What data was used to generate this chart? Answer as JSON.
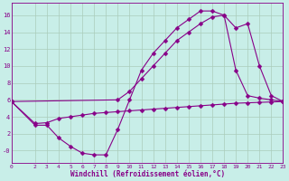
{
  "xlabel": "Windchill (Refroidissement éolien,°C)",
  "bg_color": "#c8eee8",
  "line_color": "#880088",
  "xlim": [
    0,
    23
  ],
  "ylim": [
    -1.5,
    17.5
  ],
  "yticks": [
    0,
    2,
    4,
    6,
    8,
    10,
    12,
    14,
    16
  ],
  "ytick_labels": [
    "-0",
    "2",
    "4",
    "6",
    "8",
    "10",
    "12",
    "14",
    "16"
  ],
  "xticks": [
    0,
    2,
    3,
    4,
    5,
    6,
    7,
    8,
    9,
    10,
    11,
    12,
    13,
    14,
    15,
    16,
    17,
    18,
    19,
    20,
    21,
    22,
    23
  ],
  "line1_x": [
    0,
    2,
    3,
    4,
    5,
    6,
    7,
    8,
    9,
    10,
    11,
    12,
    13,
    14,
    15,
    16,
    17,
    18,
    19,
    20,
    21,
    22,
    23
  ],
  "line1_y": [
    5.8,
    3.0,
    3.0,
    1.5,
    0.5,
    -0.3,
    -0.5,
    -0.5,
    2.5,
    6.0,
    9.5,
    11.5,
    13.0,
    14.5,
    15.5,
    16.5,
    16.5,
    16.0,
    9.5,
    6.5,
    6.2,
    6.0,
    5.8
  ],
  "line2_x": [
    0,
    9,
    10,
    11,
    12,
    13,
    14,
    15,
    16,
    17,
    18,
    19,
    20,
    21,
    22,
    23
  ],
  "line2_y": [
    5.8,
    6.0,
    7.0,
    8.5,
    10.0,
    11.5,
    13.0,
    14.0,
    15.0,
    15.8,
    16.0,
    14.5,
    15.0,
    10.0,
    6.5,
    5.8
  ],
  "line3_x": [
    0,
    2,
    3,
    4,
    5,
    6,
    7,
    8,
    9,
    10,
    11,
    12,
    13,
    14,
    15,
    16,
    17,
    18,
    19,
    20,
    21,
    22,
    23
  ],
  "line3_y": [
    5.8,
    3.2,
    3.3,
    3.8,
    4.0,
    4.2,
    4.4,
    4.5,
    4.6,
    4.7,
    4.8,
    4.9,
    5.0,
    5.1,
    5.2,
    5.3,
    5.4,
    5.5,
    5.6,
    5.65,
    5.7,
    5.75,
    5.8
  ],
  "grid_color": "#aaccbb",
  "markersize": 2.5
}
